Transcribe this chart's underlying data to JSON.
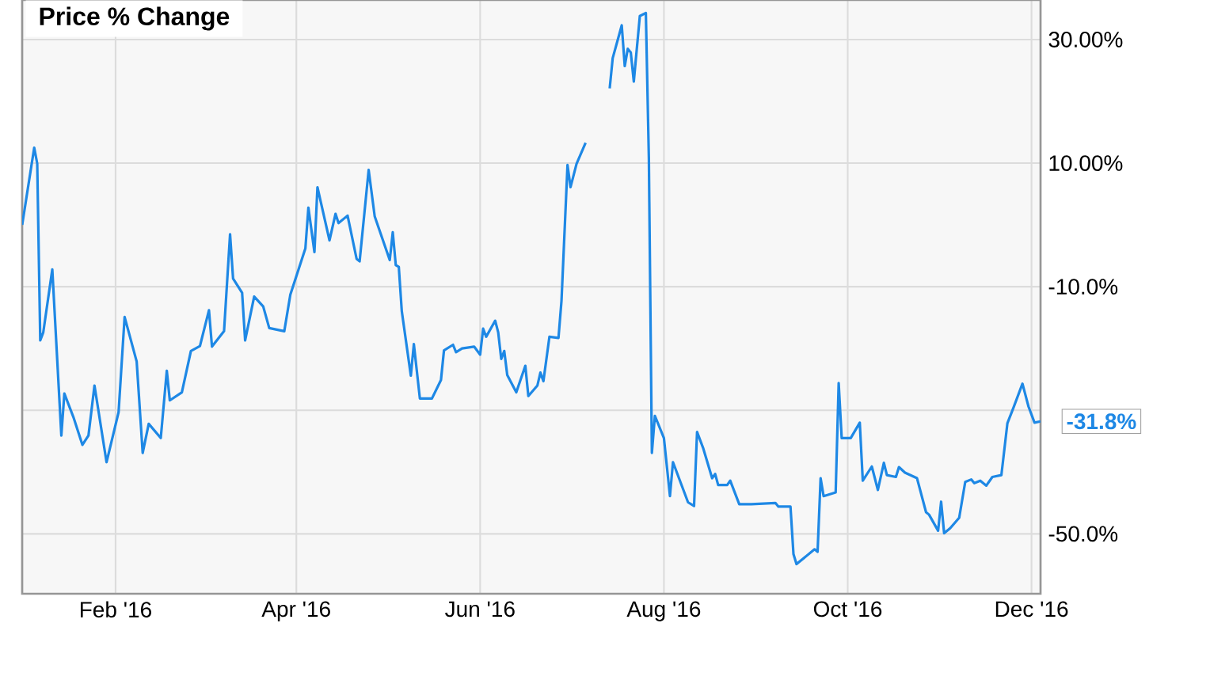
{
  "chart_data": {
    "type": "line",
    "title": "Price % Change",
    "x": [
      "2016-01-01",
      "2016-01-05",
      "2016-01-06",
      "2016-01-07",
      "2016-01-08",
      "2016-01-11",
      "2016-01-14",
      "2016-01-15",
      "2016-01-18",
      "2016-01-21",
      "2016-01-23",
      "2016-01-25",
      "2016-01-29",
      "2016-02-02",
      "2016-02-04",
      "2016-02-08",
      "2016-02-10",
      "2016-02-12",
      "2016-02-16",
      "2016-02-18",
      "2016-02-19",
      "2016-02-23",
      "2016-02-26",
      "2016-02-29",
      "2016-03-03",
      "2016-03-04",
      "2016-03-08",
      "2016-03-10",
      "2016-03-11",
      "2016-03-14",
      "2016-03-15",
      "2016-03-18",
      "2016-03-21",
      "2016-03-23",
      "2016-03-28",
      "2016-03-30",
      "2016-04-04",
      "2016-04-05",
      "2016-04-07",
      "2016-04-08",
      "2016-04-12",
      "2016-04-14",
      "2016-04-15",
      "2016-04-18",
      "2016-04-21",
      "2016-04-22",
      "2016-04-25",
      "2016-04-27",
      "2016-05-02",
      "2016-05-03",
      "2016-05-04",
      "2016-05-05",
      "2016-05-06",
      "2016-05-09",
      "2016-05-10",
      "2016-05-12",
      "2016-05-16",
      "2016-05-19",
      "2016-05-20",
      "2016-05-23",
      "2016-05-24",
      "2016-05-26",
      "2016-05-30",
      "2016-06-01",
      "2016-06-02",
      "2016-06-03",
      "2016-06-06",
      "2016-06-07",
      "2016-06-08",
      "2016-06-09",
      "2016-06-10",
      "2016-06-13",
      "2016-06-16",
      "2016-06-17",
      "2016-06-20",
      "2016-06-21",
      "2016-06-22",
      "2016-06-24",
      "2016-06-27",
      "2016-06-28",
      "2016-06-30",
      "2016-07-01",
      "2016-07-03",
      "2016-07-06",
      "2016-07-08",
      "2016-07-12",
      "2016-07-14",
      "2016-07-15",
      "2016-07-18",
      "2016-07-19",
      "2016-07-20",
      "2016-07-21",
      "2016-07-22",
      "2016-07-24",
      "2016-07-26",
      "2016-07-27",
      "2016-07-28",
      "2016-07-29",
      "2016-08-01",
      "2016-08-03",
      "2016-08-04",
      "2016-08-09",
      "2016-08-11",
      "2016-08-12",
      "2016-08-14",
      "2016-08-17",
      "2016-08-18",
      "2016-08-19",
      "2016-08-22",
      "2016-08-23",
      "2016-08-26",
      "2016-08-30",
      "2016-09-07",
      "2016-09-08",
      "2016-09-12",
      "2016-09-13",
      "2016-09-14",
      "2016-09-20",
      "2016-09-21",
      "2016-09-22",
      "2016-09-23",
      "2016-09-27",
      "2016-09-28",
      "2016-09-29",
      "2016-10-02",
      "2016-10-05",
      "2016-10-06",
      "2016-10-09",
      "2016-10-11",
      "2016-10-13",
      "2016-10-14",
      "2016-10-17",
      "2016-10-18",
      "2016-10-20",
      "2016-10-24",
      "2016-10-27",
      "2016-10-28",
      "2016-10-31",
      "2016-11-01",
      "2016-11-02",
      "2016-11-04",
      "2016-11-07",
      "2016-11-09",
      "2016-11-11",
      "2016-11-12",
      "2016-11-14",
      "2016-11-16",
      "2016-11-18",
      "2016-11-21",
      "2016-11-23",
      "2016-11-25",
      "2016-11-28",
      "2016-11-30",
      "2016-12-02",
      "2016-12-04"
    ],
    "series": [
      {
        "color": "#1e88e5",
        "values": [
          0.0,
          12.5,
          9.9,
          -18.7,
          -17.4,
          -7.2,
          -34.1,
          -27.3,
          -31.1,
          -35.6,
          -34.1,
          -26.0,
          -38.4,
          -30.3,
          -14.9,
          -22.1,
          -36.9,
          -32.2,
          -34.5,
          -23.6,
          -28.4,
          -27.1,
          -20.4,
          -19.6,
          -13.8,
          -19.7,
          -17.2,
          -1.5,
          -8.7,
          -11.0,
          -18.7,
          -11.6,
          -13.2,
          -16.7,
          -17.2,
          -11.3,
          -3.8,
          2.8,
          -4.4,
          6.1,
          -2.5,
          1.8,
          0.3,
          1.5,
          -5.5,
          -5.9,
          8.9,
          1.4,
          -5.7,
          -1.2,
          -6.5,
          -6.8,
          -14.0,
          -24.4,
          -19.3,
          -28.1,
          -28.1,
          -25.1,
          -20.3,
          -19.4,
          -20.6,
          -20.0,
          -19.7,
          -21.0,
          -16.8,
          -18.1,
          -15.5,
          -17.4,
          -21.7,
          -20.4,
          -24.3,
          -27.1,
          -22.8,
          -27.7,
          -26.0,
          -23.9,
          -25.3,
          -18.1,
          -18.3,
          -12.3,
          9.7,
          6.1,
          9.9,
          13.3,
          null,
          null,
          22.1,
          27.0,
          32.3,
          25.7,
          28.5,
          27.9,
          23.2,
          33.8,
          34.3,
          10.8,
          -36.9,
          -30.9,
          -34.5,
          -43.9,
          -38.4,
          -44.9,
          -45.5,
          -33.5,
          -36.1,
          -41.0,
          -40.3,
          -42.1,
          -42.1,
          -41.4,
          -45.2,
          -45.2,
          -45.0,
          -45.6,
          -45.6,
          -53.3,
          -54.9,
          -52.5,
          -52.9,
          -41.0,
          -43.9,
          -43.3,
          -25.6,
          -34.5,
          -34.5,
          -32.0,
          -41.4,
          -39.1,
          -42.9,
          -38.5,
          -40.5,
          -40.8,
          -39.2,
          -40.1,
          -41.0,
          -46.5,
          -46.9,
          -49.5,
          -44.8,
          -49.9,
          -49.1,
          -47.4,
          -41.6,
          -41.2,
          -41.8,
          -41.4,
          -42.2,
          -40.8,
          -40.5,
          -32.1,
          -29.6,
          -25.7,
          -29.4,
          -32.0,
          -31.8
        ]
      }
    ],
    "xlim": [
      "2016-01-01",
      "2016-12-04"
    ],
    "xticks": [
      {
        "value": "2016-02-01",
        "label": "Feb '16"
      },
      {
        "value": "2016-04-01",
        "label": "Apr '16"
      },
      {
        "value": "2016-06-01",
        "label": "Jun '16"
      },
      {
        "value": "2016-08-01",
        "label": "Aug '16"
      },
      {
        "value": "2016-10-01",
        "label": "Oct '16"
      },
      {
        "value": "2016-12-01",
        "label": "Dec '16"
      }
    ],
    "ylim": [
      -59.7,
      36.4
    ],
    "yticks": [
      {
        "value": 30,
        "label": "30.00%"
      },
      {
        "value": 10,
        "label": "10.00%"
      },
      {
        "value": -10,
        "label": "-10.0%"
      },
      {
        "value": -30,
        "label": null
      },
      {
        "value": -50,
        "label": "-50.0%"
      }
    ],
    "grid": true,
    "annotations": [
      {
        "text": "-31.8%",
        "x": "2016-12-04",
        "y": -31.8
      }
    ]
  }
}
